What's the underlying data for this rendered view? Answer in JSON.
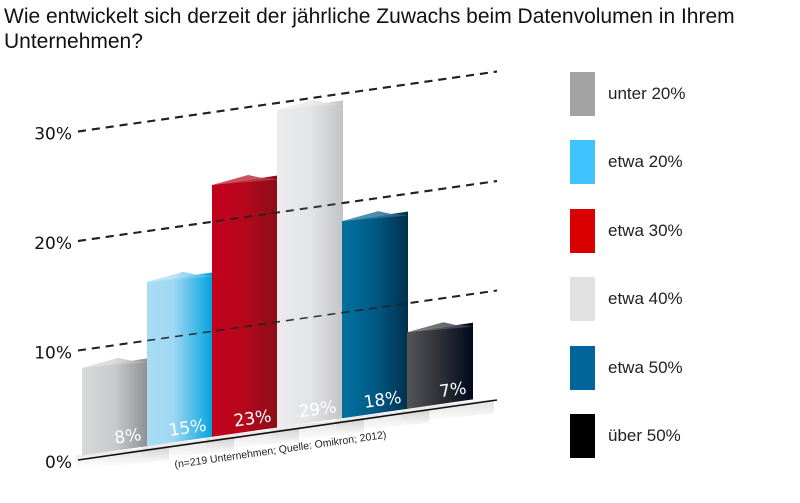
{
  "title": "Wie entwickelt sich derzeit der jährliche Zuwachs beim Datenvolumen in Ihrem Unternehmen?",
  "chart_data": {
    "type": "bar",
    "title": "Wie entwickelt sich derzeit der jährliche Zuwachs beim Datenvolumen in Ihrem Unternehmen?",
    "categories": [
      "unter 20%",
      "etwa 20%",
      "etwa 30%",
      "etwa 40%",
      "etwa 50%",
      "über 50%"
    ],
    "values": [
      8,
      15,
      23,
      29,
      18,
      7
    ],
    "value_labels": [
      "8%",
      "15%",
      "23%",
      "29%",
      "18%",
      "7%"
    ],
    "colors": [
      "#a0a0a0",
      "#40c4ff",
      "#d90000",
      "#e0e0e0",
      "#006699",
      "#000000"
    ],
    "yticks": [
      0,
      10,
      20,
      30
    ],
    "ytick_labels": [
      "0%",
      "10%",
      "20%",
      "30%"
    ],
    "ylim": [
      0,
      32
    ],
    "xlabel": "",
    "ylabel": "",
    "grid": true,
    "legend_position": "right",
    "note": "(n=219 Unternehmen; Quelle: Omikron; 2012)"
  },
  "legend": [
    {
      "label": "unter 20%",
      "color": "#a3a3a3"
    },
    {
      "label": "etwa 20%",
      "color": "#40c4ff"
    },
    {
      "label": "etwa 30%",
      "color": "#d90000"
    },
    {
      "label": "etwa 40%",
      "color": "#e1e1e1"
    },
    {
      "label": "etwa 50%",
      "color": "#006699"
    },
    {
      "label": "über 50%",
      "color": "#000000"
    }
  ]
}
